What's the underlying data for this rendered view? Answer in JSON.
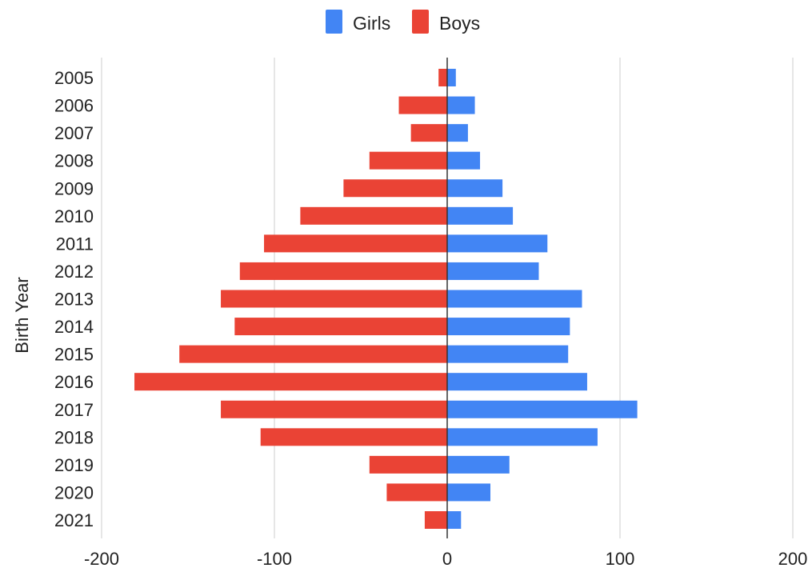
{
  "chart_data": {
    "type": "bar",
    "orientation": "horizontal",
    "layout": "population-pyramid",
    "title": "",
    "xlabel": "",
    "ylabel": "Birth Year",
    "xlim": [
      -200,
      200
    ],
    "x_ticks": [
      -200,
      -100,
      0,
      100,
      200
    ],
    "grid": true,
    "legend_position": "top",
    "categories": [
      "2005",
      "2006",
      "2007",
      "2008",
      "2009",
      "2010",
      "2011",
      "2012",
      "2013",
      "2014",
      "2015",
      "2016",
      "2017",
      "2018",
      "2019",
      "2020",
      "2021"
    ],
    "series": [
      {
        "name": "Girls",
        "color": "#4285f4",
        "values": [
          5,
          16,
          12,
          19,
          32,
          38,
          58,
          53,
          78,
          71,
          70,
          81,
          110,
          87,
          36,
          25,
          8
        ]
      },
      {
        "name": "Boys",
        "color": "#ea4335",
        "values": [
          -5,
          -28,
          -21,
          -45,
          -60,
          -85,
          -106,
          -120,
          -131,
          -123,
          -155,
          -181,
          -131,
          -108,
          -45,
          -35,
          -13
        ]
      }
    ]
  }
}
